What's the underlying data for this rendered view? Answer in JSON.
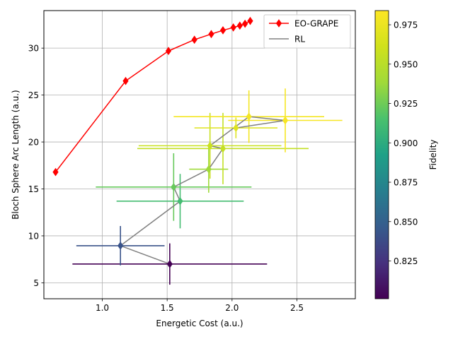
{
  "chart_data": {
    "type": "scatter",
    "title": "",
    "xlabel": "Energetic Cost (a.u.)",
    "ylabel": "Bloch Sphere Arc Length (a.u.)",
    "xlim": [
      0.55,
      2.95
    ],
    "ylim": [
      3.3,
      34.0
    ],
    "xticks": [
      "1.0",
      "1.5",
      "2.0",
      "2.5"
    ],
    "yticks": [
      "5",
      "10",
      "15",
      "20",
      "25",
      "30"
    ],
    "grid": true,
    "legend_position": "top-right",
    "series": [
      {
        "name": "EO-GRAPE",
        "type": "line",
        "color": "#ff0000",
        "marker": "diamond",
        "x": [
          0.64,
          1.18,
          1.51,
          1.71,
          1.84,
          1.93,
          2.01,
          2.06,
          2.1,
          2.14
        ],
        "y": [
          16.8,
          26.5,
          29.7,
          30.9,
          31.5,
          31.9,
          32.2,
          32.4,
          32.6,
          32.9
        ]
      },
      {
        "name": "RL",
        "type": "line",
        "color": "#808080",
        "marker": "diamond",
        "marker_color_by": "fidelity",
        "x": [
          1.52,
          1.14,
          1.6,
          1.55,
          1.82,
          1.93,
          1.83,
          2.13,
          2.41,
          2.03
        ],
        "y": [
          7.0,
          8.95,
          13.7,
          15.2,
          17.1,
          19.3,
          19.6,
          22.7,
          22.3,
          21.5
        ],
        "xerr": [
          0.75,
          0.34,
          0.49,
          0.6,
          0.15,
          0.66,
          0.55,
          0.58,
          0.44,
          0.32
        ],
        "yerr": [
          2.2,
          2.1,
          2.9,
          3.6,
          2.5,
          3.8,
          3.5,
          2.8,
          3.4,
          1.1
        ],
        "fidelity": [
          0.801,
          0.842,
          0.912,
          0.923,
          0.938,
          0.955,
          0.958,
          0.979,
          0.981,
          0.968
        ]
      }
    ],
    "colorbar": {
      "label": "Fidelity",
      "colormap": "viridis",
      "range": [
        0.801,
        0.984
      ],
      "ticks": [
        "0.825",
        "0.850",
        "0.875",
        "0.900",
        "0.925",
        "0.950",
        "0.975"
      ]
    }
  }
}
